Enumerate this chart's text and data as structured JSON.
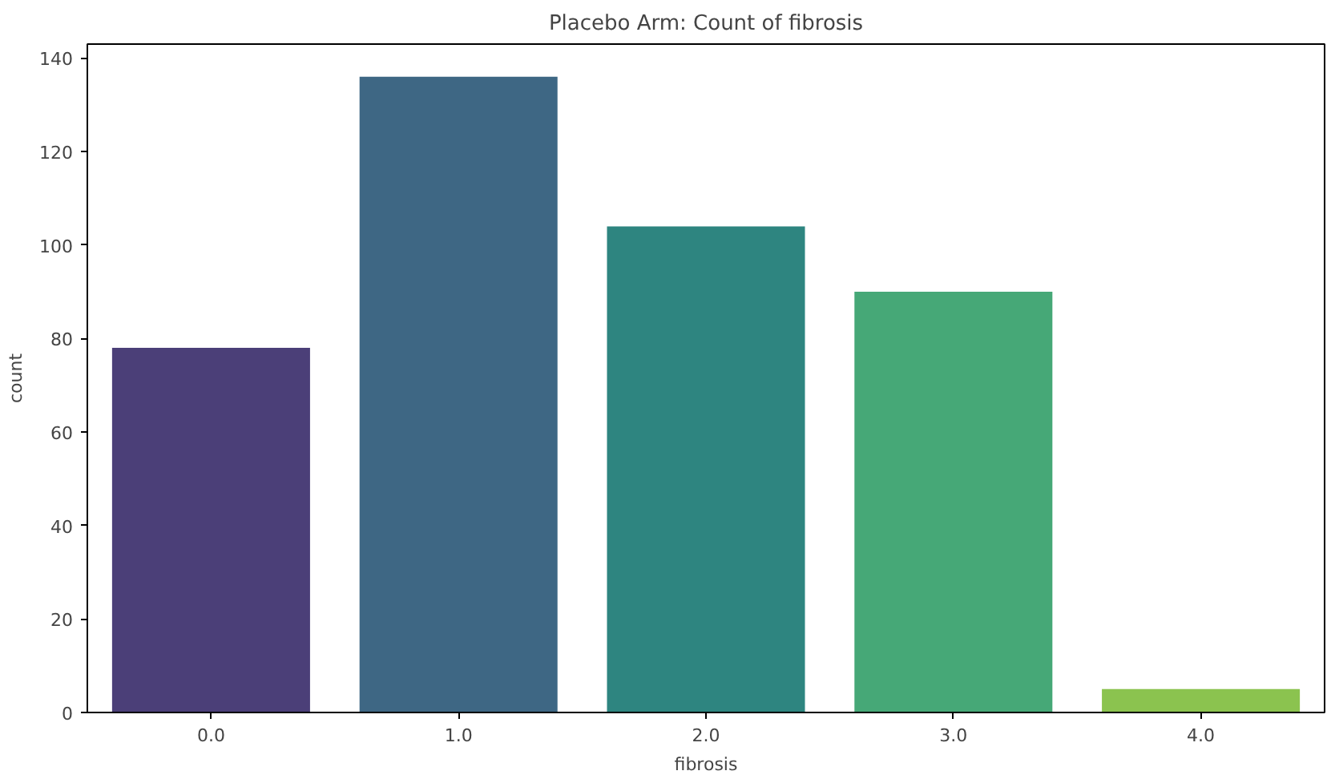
{
  "chart_data": {
    "type": "bar",
    "title": "Placebo Arm: Count of fibrosis",
    "xlabel": "fibrosis",
    "ylabel": "count",
    "categories": [
      "0.0",
      "1.0",
      "2.0",
      "3.0",
      "4.0"
    ],
    "values": [
      78,
      136,
      104,
      90,
      5
    ],
    "colors": [
      "#4b3f78",
      "#3e6784",
      "#2e8580",
      "#46a877",
      "#8bc34f"
    ],
    "ylim": [
      0,
      143
    ],
    "yticks": [
      0,
      20,
      40,
      60,
      80,
      100,
      120,
      140
    ],
    "grid": false
  }
}
